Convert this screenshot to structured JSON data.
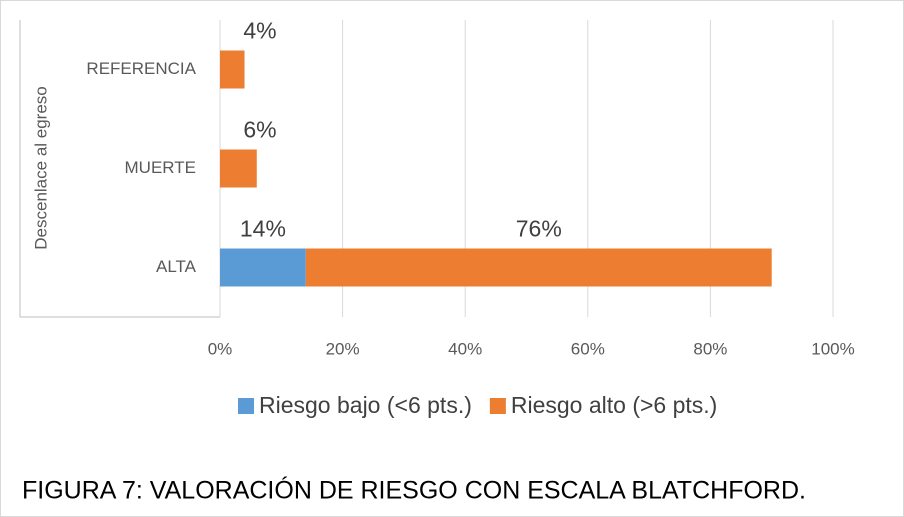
{
  "chart_data": {
    "type": "stacked_barh",
    "title": "FIGURA 7: VALORACIÓN DE RIESGO CON ESCALA BLATCHFORD.",
    "ylabel": "Descenlace al egreso",
    "categories": [
      "REFERENCIA",
      "MUERTE",
      "ALTA"
    ],
    "series": [
      {
        "name": "Riesgo bajo (<6 pts.)",
        "color": "#5b9bd5",
        "values": [
          0,
          0,
          14
        ],
        "value_labels": [
          null,
          null,
          "14%"
        ]
      },
      {
        "name": "Riesgo alto (>6 pts.)",
        "color": "#ed7d31",
        "values": [
          4,
          6,
          76
        ],
        "value_labels": [
          "4%",
          "6%",
          "76%"
        ]
      }
    ],
    "xlim": [
      0,
      100
    ],
    "xticks": [
      {
        "value": 0,
        "label": "0%"
      },
      {
        "value": 20,
        "label": "20%"
      },
      {
        "value": 40,
        "label": "40%"
      },
      {
        "value": 60,
        "label": "60%"
      },
      {
        "value": 80,
        "label": "80%"
      },
      {
        "value": 100,
        "label": "100%"
      }
    ],
    "grid": true,
    "legend": "bottom"
  }
}
